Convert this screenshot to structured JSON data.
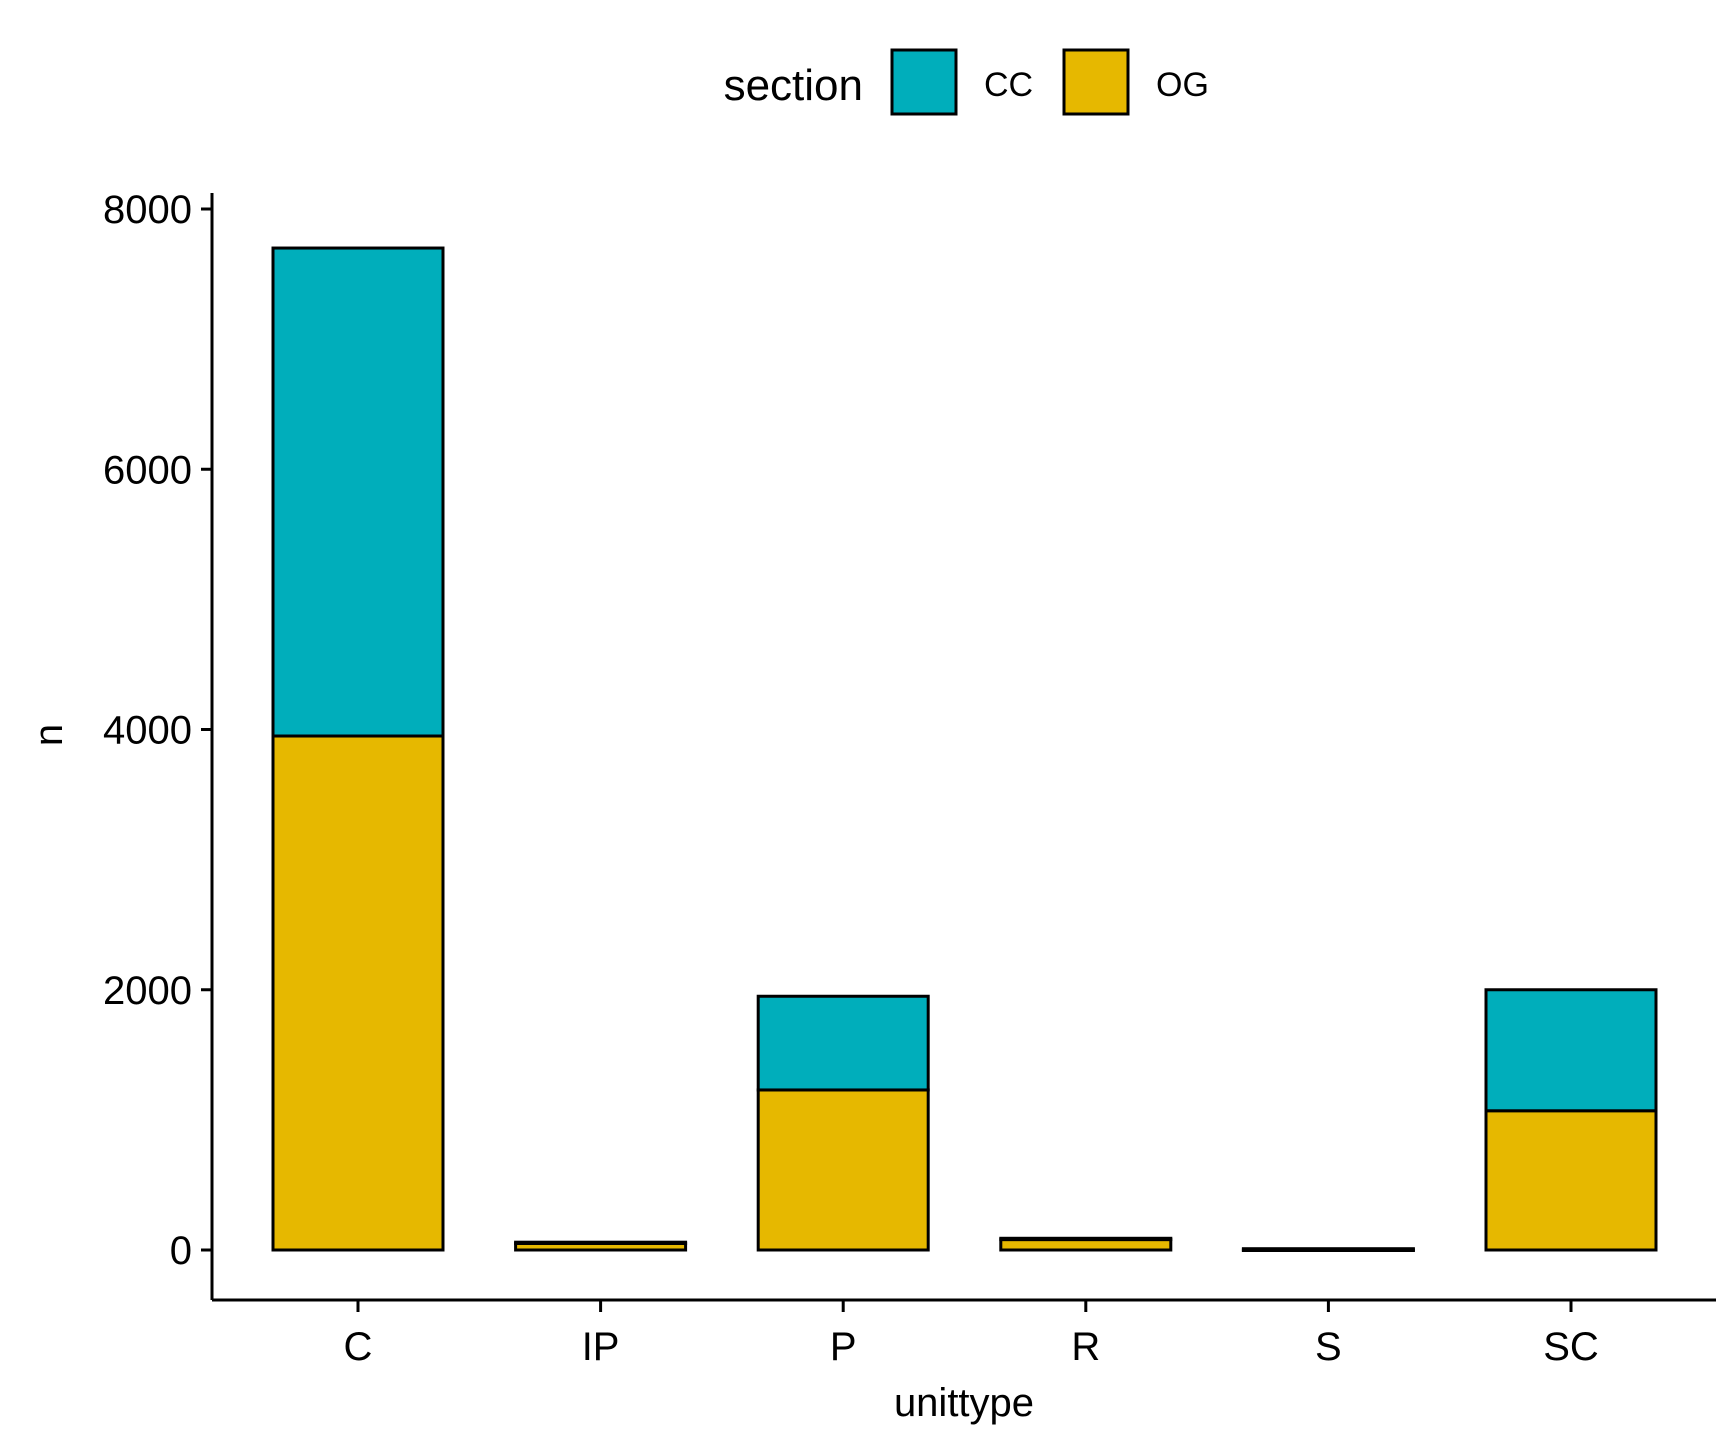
{
  "chart_data": {
    "type": "bar",
    "stacked": true,
    "title": "",
    "xlabel": "unittype",
    "ylabel": "n",
    "categories": [
      "C",
      "IP",
      "P",
      "R",
      "S",
      "SC"
    ],
    "series": [
      {
        "name": "OG",
        "color": "#E6B800",
        "values": [
          3950,
          50,
          1230,
          80,
          0,
          1070
        ]
      },
      {
        "name": "CC",
        "color": "#00AEBB",
        "values": [
          3750,
          10,
          720,
          10,
          10,
          930
        ]
      }
    ],
    "ylim": [
      0,
      8000
    ],
    "yticks": [
      0,
      2000,
      4000,
      6000,
      8000
    ],
    "grid": false,
    "legend": {
      "title": "section",
      "position": "top",
      "entries": [
        "CC",
        "OG"
      ]
    }
  },
  "colors": {
    "CC": "#00AEBB",
    "OG": "#E6B800",
    "axis": "#000000"
  }
}
